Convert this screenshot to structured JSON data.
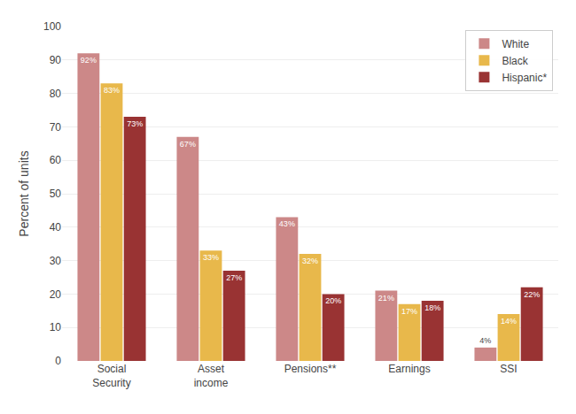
{
  "chart_data": {
    "type": "bar",
    "categories": [
      "Social\nSecurity",
      "Asset\nincome",
      "Pensions**",
      "Earnings",
      "SSI"
    ],
    "series": [
      {
        "name": "White",
        "color": "#cc8888",
        "values": [
          92,
          67,
          43,
          21,
          4
        ],
        "value_labels": [
          "92%",
          "67%",
          "43%",
          "21%",
          "4%"
        ]
      },
      {
        "name": "Black",
        "color": "#e8b84b",
        "values": [
          83,
          33,
          32,
          17,
          14
        ],
        "value_labels": [
          "83%",
          "33%",
          "32%",
          "17%",
          "14%"
        ]
      },
      {
        "name": "Hispanic*",
        "color": "#993333",
        "values": [
          73,
          27,
          20,
          18,
          22
        ],
        "value_labels": [
          "73%",
          "27%",
          "20%",
          "18%",
          "22%"
        ]
      }
    ],
    "ylabel": "Percent of units",
    "ylim": [
      0,
      100
    ],
    "yticks": [
      0,
      10,
      20,
      30,
      40,
      50,
      60,
      70,
      80,
      90,
      100
    ],
    "grid": true,
    "legend": "upper right",
    "data_labels": true
  }
}
